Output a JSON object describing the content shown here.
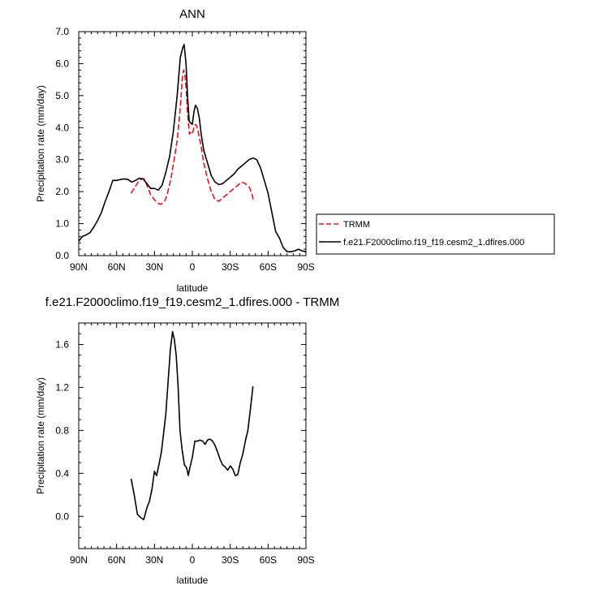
{
  "chart_data": [
    {
      "type": "line",
      "title": "ANN",
      "xlabel": "latitude",
      "ylabel": "Precipitation rate (mm/day)",
      "xlim": [
        -90,
        90
      ],
      "ylim": [
        0,
        7
      ],
      "x_ticks": [
        -90,
        -60,
        -30,
        0,
        30,
        60,
        90
      ],
      "x_tick_labels": [
        "90N",
        "60N",
        "30N",
        "0",
        "30S",
        "60S",
        "90S"
      ],
      "y_ticks": [
        0,
        1,
        2,
        3,
        4,
        5,
        6,
        7
      ],
      "y_tick_labels": [
        "0.0",
        "1.0",
        "2.0",
        "3.0",
        "4.0",
        "5.0",
        "6.0",
        "7.0"
      ],
      "legend_position": "right",
      "series": [
        {
          "name": "TRMM",
          "color": "#e8131f",
          "dashed": true,
          "x": [
            -48.6,
            -46,
            -43,
            -40,
            -38.1,
            -36,
            -33,
            -30,
            -28,
            -25,
            -22,
            -20,
            -17,
            -14,
            -12,
            -10.3,
            -9,
            -8.1,
            -7,
            -6,
            -4.8,
            -3.9,
            -2.3,
            -1.2,
            0,
            1.2,
            2.5,
            3.5,
            5,
            7,
            9,
            12,
            15,
            18,
            21,
            24,
            27,
            30,
            33,
            36,
            39,
            42,
            45,
            47,
            48.3
          ],
          "y": [
            1.95,
            2.1,
            2.3,
            2.4,
            2.4,
            2.2,
            1.9,
            1.75,
            1.65,
            1.6,
            1.7,
            1.9,
            2.4,
            3.1,
            3.6,
            4.3,
            4.9,
            5.5,
            5.8,
            5.7,
            5.2,
            4.5,
            3.8,
            3.85,
            3.8,
            4.0,
            4.1,
            4.05,
            3.8,
            3.4,
            2.9,
            2.4,
            2.0,
            1.75,
            1.7,
            1.8,
            1.9,
            2.0,
            2.1,
            2.2,
            2.3,
            2.25,
            2.15,
            1.95,
            1.75
          ]
        },
        {
          "name": "f.e21.F2000climo.f19_f19.cesm2_1.dfires.000",
          "color": "#000000",
          "dashed": false,
          "x": [
            -90,
            -87,
            -84,
            -81,
            -78,
            -75,
            -72,
            -69,
            -66,
            -63,
            -60,
            -57,
            -54,
            -51,
            -48,
            -45,
            -42,
            -39,
            -36,
            -33,
            -30,
            -27,
            -24,
            -21,
            -18,
            -15,
            -12,
            -9.5,
            -7.6,
            -6.5,
            -5,
            -3.8,
            -2.5,
            -1.3,
            0,
            1.3,
            2.5,
            4,
            5.5,
            7,
            9,
            12,
            15,
            18,
            21,
            24,
            27,
            30,
            33,
            36,
            39,
            42,
            45,
            48,
            51,
            54,
            57,
            60,
            63,
            66,
            69,
            72,
            75,
            78,
            81,
            84,
            87,
            90
          ],
          "y": [
            0.45,
            0.6,
            0.65,
            0.72,
            0.9,
            1.1,
            1.35,
            1.7,
            2.0,
            2.35,
            2.35,
            2.38,
            2.4,
            2.38,
            2.3,
            2.35,
            2.42,
            2.4,
            2.25,
            2.1,
            2.1,
            2.05,
            2.2,
            2.6,
            3.1,
            3.9,
            5.0,
            6.2,
            6.5,
            6.6,
            6.0,
            5.0,
            4.2,
            4.15,
            4.1,
            4.5,
            4.7,
            4.6,
            4.3,
            3.8,
            3.3,
            2.9,
            2.5,
            2.3,
            2.22,
            2.25,
            2.35,
            2.45,
            2.55,
            2.7,
            2.8,
            2.9,
            3.0,
            3.05,
            3.0,
            2.75,
            2.35,
            1.95,
            1.35,
            0.75,
            0.55,
            0.25,
            0.13,
            0.12,
            0.15,
            0.2,
            0.15,
            0.12
          ]
        }
      ]
    },
    {
      "type": "line",
      "title": "f.e21.F2000climo.f19_f19.cesm2_1.dfires.000 - TRMM",
      "xlabel": "latitude",
      "ylabel": "Precipitation rate (mm/day)",
      "xlim": [
        -90,
        90
      ],
      "ylim": [
        -0.3,
        1.8
      ],
      "x_ticks": [
        -90,
        -60,
        -30,
        0,
        30,
        60,
        90
      ],
      "x_tick_labels": [
        "90N",
        "60N",
        "30N",
        "0",
        "30S",
        "60S",
        "90S"
      ],
      "y_ticks": [
        0.0,
        0.4,
        0.8,
        1.2,
        1.6
      ],
      "y_tick_labels": [
        "0.0",
        "0.4",
        "0.8",
        "1.2",
        "1.6"
      ],
      "series": [
        {
          "color": "#000000",
          "dashed": false,
          "x": [
            -48.5,
            -46,
            -43.5,
            -41,
            -38.5,
            -36,
            -34,
            -32,
            -30,
            -28.3,
            -26.5,
            -24.5,
            -22.5,
            -21,
            -19.2,
            -17.4,
            -15.7,
            -14.3,
            -12.8,
            -11.3,
            -9.8,
            -8.1,
            -6.3,
            -4.5,
            -3.2,
            -2,
            0,
            2,
            4,
            6,
            8.2,
            10,
            12,
            14,
            16,
            18,
            20,
            22,
            24,
            26,
            28,
            30,
            32,
            34,
            36,
            38,
            40,
            42,
            44,
            46,
            48
          ],
          "y": [
            0.35,
            0.2,
            0.02,
            -0.01,
            -0.03,
            0.08,
            0.14,
            0.25,
            0.42,
            0.38,
            0.48,
            0.6,
            0.8,
            0.95,
            1.25,
            1.55,
            1.72,
            1.65,
            1.5,
            1.22,
            0.8,
            0.62,
            0.48,
            0.45,
            0.38,
            0.45,
            0.55,
            0.7,
            0.7,
            0.71,
            0.7,
            0.67,
            0.71,
            0.72,
            0.7,
            0.66,
            0.6,
            0.53,
            0.48,
            0.46,
            0.43,
            0.47,
            0.44,
            0.38,
            0.39,
            0.5,
            0.58,
            0.7,
            0.8,
            1.0,
            1.21
          ]
        }
      ]
    }
  ]
}
